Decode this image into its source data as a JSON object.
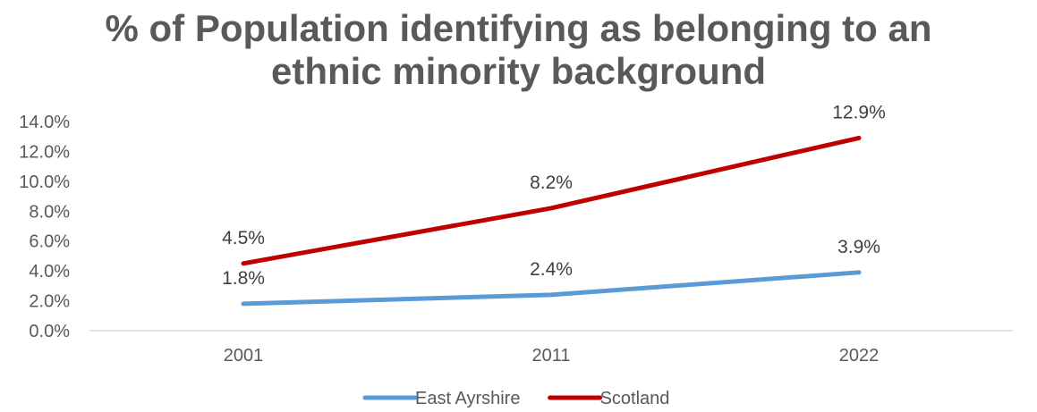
{
  "chart_data": {
    "type": "line",
    "title_lines": [
      "% of Population identifying as belonging to an",
      "ethnic minority background"
    ],
    "categories": [
      "2001",
      "2011",
      "2022"
    ],
    "series": [
      {
        "name": "East Ayrshire",
        "values": [
          1.8,
          2.4,
          3.9
        ],
        "labels": [
          "1.8%",
          "2.4%",
          "3.9%"
        ],
        "color": "#5B9BD5"
      },
      {
        "name": "Scotland",
        "values": [
          4.5,
          8.2,
          12.9
        ],
        "labels": [
          "4.5%",
          "8.2%",
          "12.9%"
        ],
        "color": "#C00000"
      }
    ],
    "ylim": [
      0,
      14
    ],
    "yticks": [
      0,
      2,
      4,
      6,
      8,
      10,
      12,
      14
    ],
    "ytick_labels": [
      "0.0%",
      "2.0%",
      "4.0%",
      "6.0%",
      "8.0%",
      "10.0%",
      "12.0%",
      "14.0%"
    ],
    "grid": false,
    "legend_position": "bottom"
  }
}
